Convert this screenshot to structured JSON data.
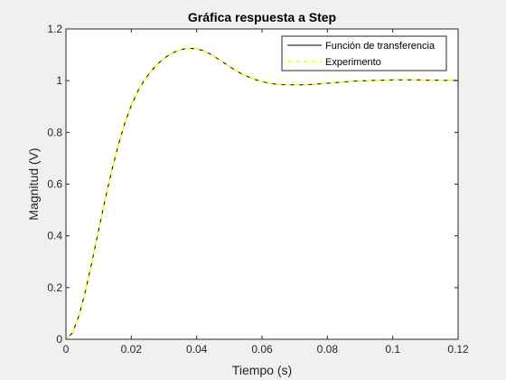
{
  "chart_data": {
    "type": "line",
    "title": "Gráfica respuesta a Step",
    "xlabel": "Tiempo (s)",
    "ylabel": "Magnitud (V)",
    "xlim": [
      0,
      0.12
    ],
    "ylim": [
      0,
      1.2
    ],
    "xticks": [
      "0",
      "0.02",
      "0.04",
      "0.06",
      "0.08",
      "0.1",
      "0.12"
    ],
    "yticks": [
      "0",
      "0.2",
      "0.4",
      "0.6",
      "0.8",
      "1",
      "1.2"
    ],
    "grid": false,
    "legend_position": "top-right",
    "series": [
      {
        "name": "Función de transferencia",
        "color": "#000000",
        "style": "solid",
        "x": [
          0,
          0.002,
          0.004,
          0.006,
          0.008,
          0.01,
          0.012,
          0.014,
          0.016,
          0.018,
          0.02,
          0.022,
          0.024,
          0.026,
          0.028,
          0.03,
          0.032,
          0.034,
          0.036,
          0.038,
          0.04,
          0.042,
          0.044,
          0.046,
          0.048,
          0.05,
          0.052,
          0.054,
          0.056,
          0.058,
          0.06,
          0.062,
          0.064,
          0.066,
          0.068,
          0.07,
          0.072,
          0.074,
          0.076,
          0.078,
          0.08,
          0.082,
          0.084,
          0.086,
          0.088,
          0.09,
          0.092,
          0.094,
          0.096,
          0.098,
          0.1,
          0.102,
          0.104,
          0.106,
          0.108,
          0.11,
          0.112,
          0.114,
          0.116,
          0.118,
          0.12
        ],
        "values": [
          0,
          0.025,
          0.092,
          0.188,
          0.302,
          0.422,
          0.541,
          0.651,
          0.75,
          0.835,
          0.904,
          0.96,
          1.002,
          1.036,
          1.064,
          1.086,
          1.103,
          1.115,
          1.122,
          1.125,
          1.123,
          1.116,
          1.104,
          1.089,
          1.072,
          1.055,
          1.039,
          1.025,
          1.014,
          1.004,
          0.996,
          0.991,
          0.987,
          0.985,
          0.984,
          0.984,
          0.984,
          0.985,
          0.986,
          0.988,
          0.99,
          0.992,
          0.994,
          0.996,
          0.998,
          0.999,
          1.0,
          1.001,
          1.002,
          1.002,
          1.003,
          1.003,
          1.003,
          1.003,
          1.003,
          1.002,
          1.002,
          1.002,
          1.001,
          1.001,
          1.001
        ]
      },
      {
        "name": "Experimento",
        "color": "#ffff00",
        "style": "dashed",
        "x": [
          0,
          0.002,
          0.004,
          0.006,
          0.008,
          0.01,
          0.012,
          0.014,
          0.016,
          0.018,
          0.02,
          0.022,
          0.024,
          0.026,
          0.028,
          0.03,
          0.032,
          0.034,
          0.036,
          0.038,
          0.04,
          0.042,
          0.044,
          0.046,
          0.048,
          0.05,
          0.052,
          0.054,
          0.056,
          0.058,
          0.06,
          0.062,
          0.064,
          0.066,
          0.068,
          0.07,
          0.072,
          0.074,
          0.076,
          0.078,
          0.08,
          0.082,
          0.084,
          0.086,
          0.088,
          0.09,
          0.092,
          0.094,
          0.096,
          0.098,
          0.1,
          0.102,
          0.104,
          0.106,
          0.108,
          0.11,
          0.112,
          0.114,
          0.116,
          0.118,
          0.12
        ],
        "values": [
          0,
          0.025,
          0.092,
          0.188,
          0.302,
          0.422,
          0.541,
          0.651,
          0.75,
          0.835,
          0.904,
          0.96,
          1.002,
          1.036,
          1.064,
          1.086,
          1.103,
          1.115,
          1.122,
          1.125,
          1.123,
          1.116,
          1.104,
          1.089,
          1.072,
          1.055,
          1.039,
          1.025,
          1.014,
          1.004,
          0.996,
          0.991,
          0.987,
          0.985,
          0.984,
          0.984,
          0.984,
          0.985,
          0.986,
          0.988,
          0.99,
          0.992,
          0.994,
          0.996,
          0.998,
          0.999,
          1.0,
          1.001,
          1.002,
          1.002,
          1.003,
          1.003,
          1.003,
          1.003,
          1.003,
          1.002,
          1.002,
          1.002,
          1.001,
          1.001,
          1.001
        ]
      }
    ]
  }
}
